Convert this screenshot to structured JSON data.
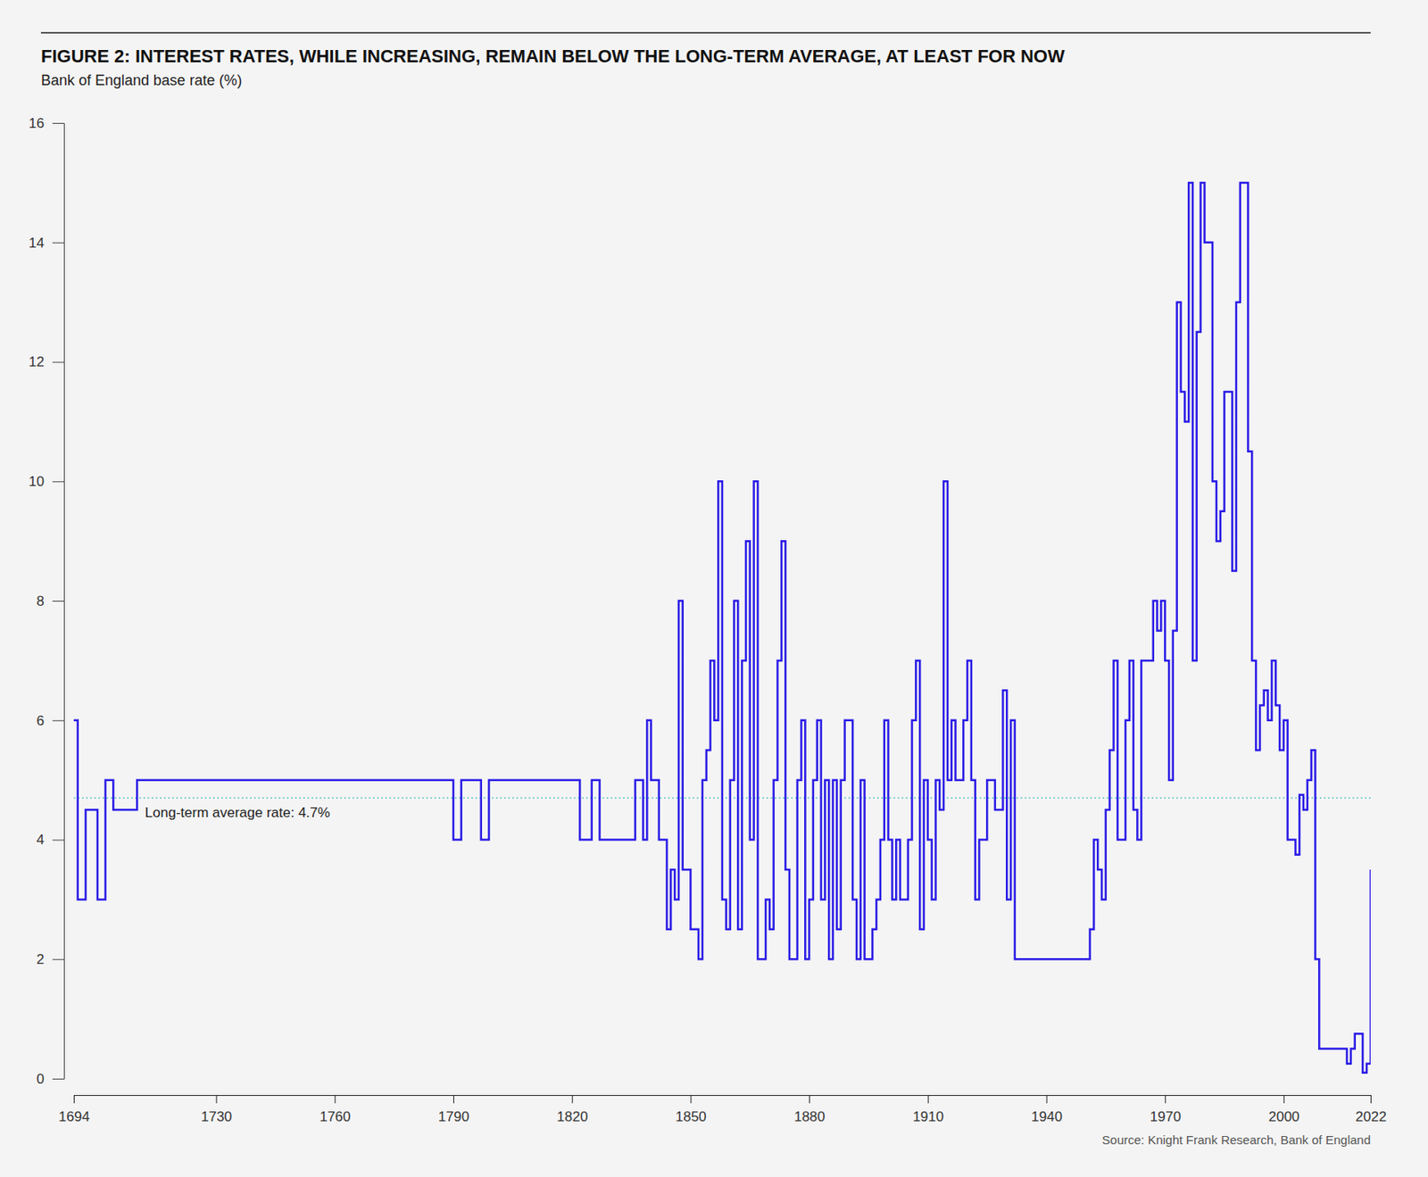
{
  "chart_data": {
    "type": "line",
    "title": "FIGURE 2: INTEREST RATES, WHILE INCREASING, REMAIN BELOW THE LONG-TERM AVERAGE, AT LEAST FOR NOW",
    "subtitle": "Bank of England base rate (%)",
    "source": "Source: Knight Frank Research, Bank of England",
    "color": "#2a1be6",
    "line_style": "step",
    "x": [
      1694,
      1695,
      1697,
      1700,
      1702,
      1704,
      1710,
      1790,
      1792,
      1797,
      1799,
      1822,
      1825,
      1827,
      1836,
      1838,
      1839,
      1840,
      1842,
      1844,
      1845,
      1846,
      1847,
      1848,
      1850,
      1852,
      1853,
      1854,
      1855,
      1856,
      1857,
      1858,
      1859,
      1860,
      1861,
      1862,
      1863,
      1864,
      1865,
      1866,
      1867,
      1869,
      1870,
      1871,
      1872,
      1873,
      1874,
      1875,
      1877,
      1878,
      1879,
      1880,
      1881,
      1882,
      1883,
      1884,
      1885,
      1886,
      1887,
      1888,
      1889,
      1891,
      1892,
      1893,
      1894,
      1896,
      1897,
      1898,
      1899,
      1900,
      1901,
      1902,
      1903,
      1905,
      1906,
      1907,
      1908,
      1909,
      1910,
      1911,
      1912,
      1913,
      1914,
      1915,
      1916,
      1917,
      1919,
      1920,
      1921,
      1922,
      1923,
      1925,
      1927,
      1929,
      1930,
      1931,
      1932,
      1951,
      1952,
      1953,
      1954,
      1955,
      1956,
      1957,
      1958,
      1960,
      1961,
      1962,
      1963,
      1964,
      1967,
      1968,
      1969,
      1970,
      1971,
      1972,
      1973,
      1974,
      1975,
      1976,
      1977,
      1978,
      1979,
      1980,
      1982,
      1983,
      1984,
      1985,
      1987,
      1988,
      1989,
      1991,
      1992,
      1993,
      1994,
      1995,
      1996,
      1997,
      1998,
      1999,
      2000,
      2001,
      2003,
      2004,
      2005,
      2006,
      2007,
      2008,
      2009,
      2016,
      2017,
      2018,
      2020,
      2021,
      2022
    ],
    "values": [
      6,
      3,
      4.5,
      3,
      5,
      4.5,
      5,
      4,
      5,
      4,
      5,
      4,
      5,
      4,
      5,
      4,
      6,
      5,
      4,
      2.5,
      3.5,
      3,
      8,
      3.5,
      2.5,
      2,
      5,
      5.5,
      7,
      6,
      10,
      3,
      2.5,
      5,
      8,
      2.5,
      7,
      9,
      4,
      10,
      2,
      3,
      2.5,
      5,
      7,
      9,
      3.5,
      2,
      5,
      6,
      2,
      3,
      5,
      6,
      3,
      5,
      2,
      5,
      2.5,
      5,
      6,
      3,
      2,
      5,
      2,
      2.5,
      3,
      4,
      6,
      4,
      3,
      4,
      3,
      4,
      6,
      7,
      2.5,
      5,
      4,
      3,
      5,
      4.5,
      10,
      5,
      6,
      5,
      6,
      7,
      5,
      3,
      4,
      5,
      4.5,
      6.5,
      3,
      6,
      2,
      2.5,
      4,
      3.5,
      3,
      4.5,
      5.5,
      7,
      4,
      6,
      7,
      4.5,
      4,
      7,
      8,
      7.5,
      8,
      7,
      5,
      7.5,
      13,
      11.5,
      11,
      15,
      7,
      12.5,
      15,
      14,
      10,
      9,
      9.5,
      11.5,
      8.5,
      13,
      15,
      10.5,
      7,
      5.5,
      6.25,
      6.5,
      6,
      7,
      6.25,
      5.5,
      6,
      4,
      3.75,
      4.75,
      4.5,
      5,
      5.5,
      2,
      0.5,
      0.25,
      0.5,
      0.75,
      0.1,
      0.25,
      3.5
    ],
    "xlim": [
      1694,
      2022
    ],
    "xticks": [
      1694,
      1730,
      1760,
      1790,
      1820,
      1850,
      1880,
      1910,
      1940,
      1970,
      2000,
      2022
    ],
    "ylim": [
      0,
      16
    ],
    "yticks": [
      0,
      2,
      4,
      6,
      8,
      10,
      12,
      14,
      16
    ],
    "reference_line": {
      "value": 4.7,
      "label": "Long-term average rate: 4.7%",
      "color": "#5bc6c9",
      "line_style": "dotted"
    }
  }
}
